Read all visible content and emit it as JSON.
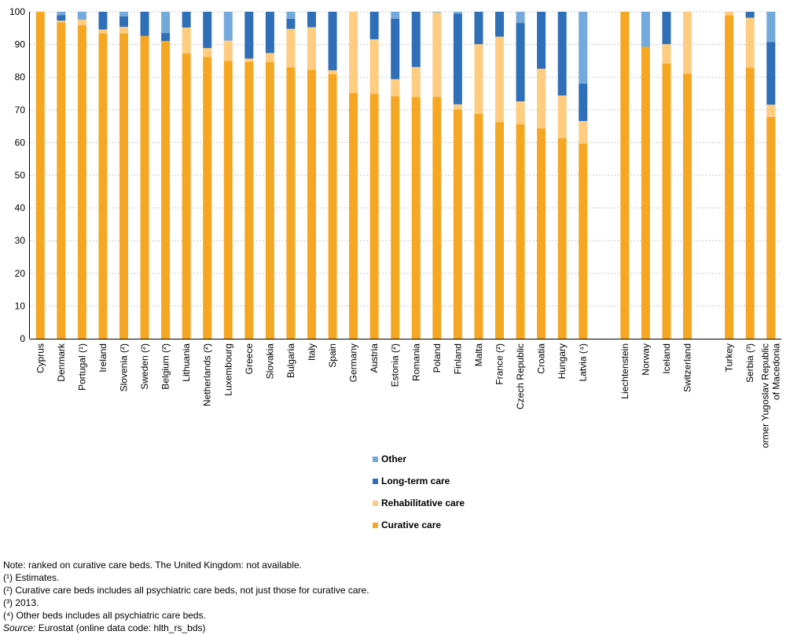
{
  "chart_data": {
    "type": "bar",
    "stacked": true,
    "ylim": [
      0,
      100
    ],
    "yticks": [
      0,
      10,
      20,
      30,
      40,
      50,
      60,
      70,
      80,
      90,
      100
    ],
    "grid": true,
    "legend_position": "bottom-center",
    "categories": [
      "Cyprus",
      "Denmark",
      "Portugal (¹)",
      "Ireland",
      "Slovenia (²)",
      "Sweden (²)",
      "Belgium (²)",
      "Lithuania",
      "Netherlands (²)",
      "Luxembourg",
      "Greece",
      "Slovakia",
      "Bulgaria",
      "Italy",
      "Spain",
      "Germany",
      "Austria",
      "Estonia (²)",
      "Romania",
      "Poland",
      "Finland",
      "Malta",
      "France (²)",
      "Czech Republic",
      "Croatia",
      "Hungary",
      "Latvia (⁴)",
      "",
      "Liechtenstein",
      "Norway",
      "Iceland",
      "Switzerland",
      "",
      "Turkey",
      "Serbia (³)",
      "Former Yugoslav Republic of Macedonia"
    ],
    "series": [
      {
        "name": "Curative care",
        "color": "#f5a623",
        "values": [
          100,
          96.8,
          95.9,
          93.4,
          93.4,
          92.6,
          91.1,
          87.3,
          86.2,
          85.0,
          84.7,
          84.6,
          83.0,
          82.2,
          80.9,
          75.2,
          74.9,
          74.2,
          73.9,
          74.0,
          70.1,
          68.8,
          66.3,
          65.6,
          64.3,
          61.3,
          59.7,
          null,
          100,
          89.3,
          84.2,
          81.1,
          null,
          98.9,
          82.9,
          67.8
        ]
      },
      {
        "name": "Rehabilitative care",
        "color": "#ffcc80",
        "values": [
          0,
          0.5,
          1.7,
          1.2,
          2.0,
          0,
          0,
          7.9,
          2.7,
          6.2,
          1.0,
          2.8,
          11.8,
          13.1,
          1.2,
          24.8,
          16.7,
          5.2,
          9.2,
          25.8,
          1.6,
          21.3,
          26.1,
          7.0,
          18.3,
          13.1,
          6.9,
          null,
          0,
          0,
          5.9,
          18.9,
          null,
          1.1,
          15.3,
          3.8
        ]
      },
      {
        "name": "Long-term care",
        "color": "#2e6fb7",
        "values": [
          0,
          1.7,
          0,
          5.4,
          3.2,
          7.4,
          2.4,
          4.8,
          11.1,
          0,
          14.3,
          12.6,
          3.1,
          4.7,
          17.9,
          0,
          8.4,
          18.5,
          16.9,
          0,
          27.7,
          9.9,
          7.6,
          24.0,
          17.4,
          25.6,
          11.4,
          null,
          0,
          0,
          9.9,
          0,
          null,
          0,
          1.8,
          19.2
        ]
      },
      {
        "name": "Other",
        "color": "#74a9dc",
        "values": [
          0,
          1.0,
          2.4,
          0,
          1.4,
          0,
          6.5,
          0,
          0,
          8.8,
          0,
          0,
          2.1,
          0,
          0,
          0,
          0,
          2.1,
          0,
          0.2,
          0.6,
          0,
          0,
          3.4,
          0,
          0,
          22.0,
          null,
          0,
          10.7,
          0,
          0,
          null,
          0,
          0,
          9.2
        ]
      }
    ]
  },
  "legend": {
    "items": [
      {
        "label": "Other",
        "color": "#74a9dc"
      },
      {
        "label": "Long-term care",
        "color": "#2e6fb7"
      },
      {
        "label": "Rehabilitative care",
        "color": "#ffcc80"
      },
      {
        "label": "Curative care",
        "color": "#f5a623"
      }
    ]
  },
  "notes": {
    "line1": "Note: ranked on curative care beds. The United Kingdom: not available.",
    "line2": "(¹) Estimates.",
    "line3": "(²) Curative care beds includes all psychiatric care beds, not just those for curative care.",
    "line4": "(³) 2013.",
    "line5": "(⁴) Other beds includes all psychiatric care beds.",
    "source_label": "Source:",
    "source_text": "Eurostat (online data code: hlth_rs_bds)"
  }
}
